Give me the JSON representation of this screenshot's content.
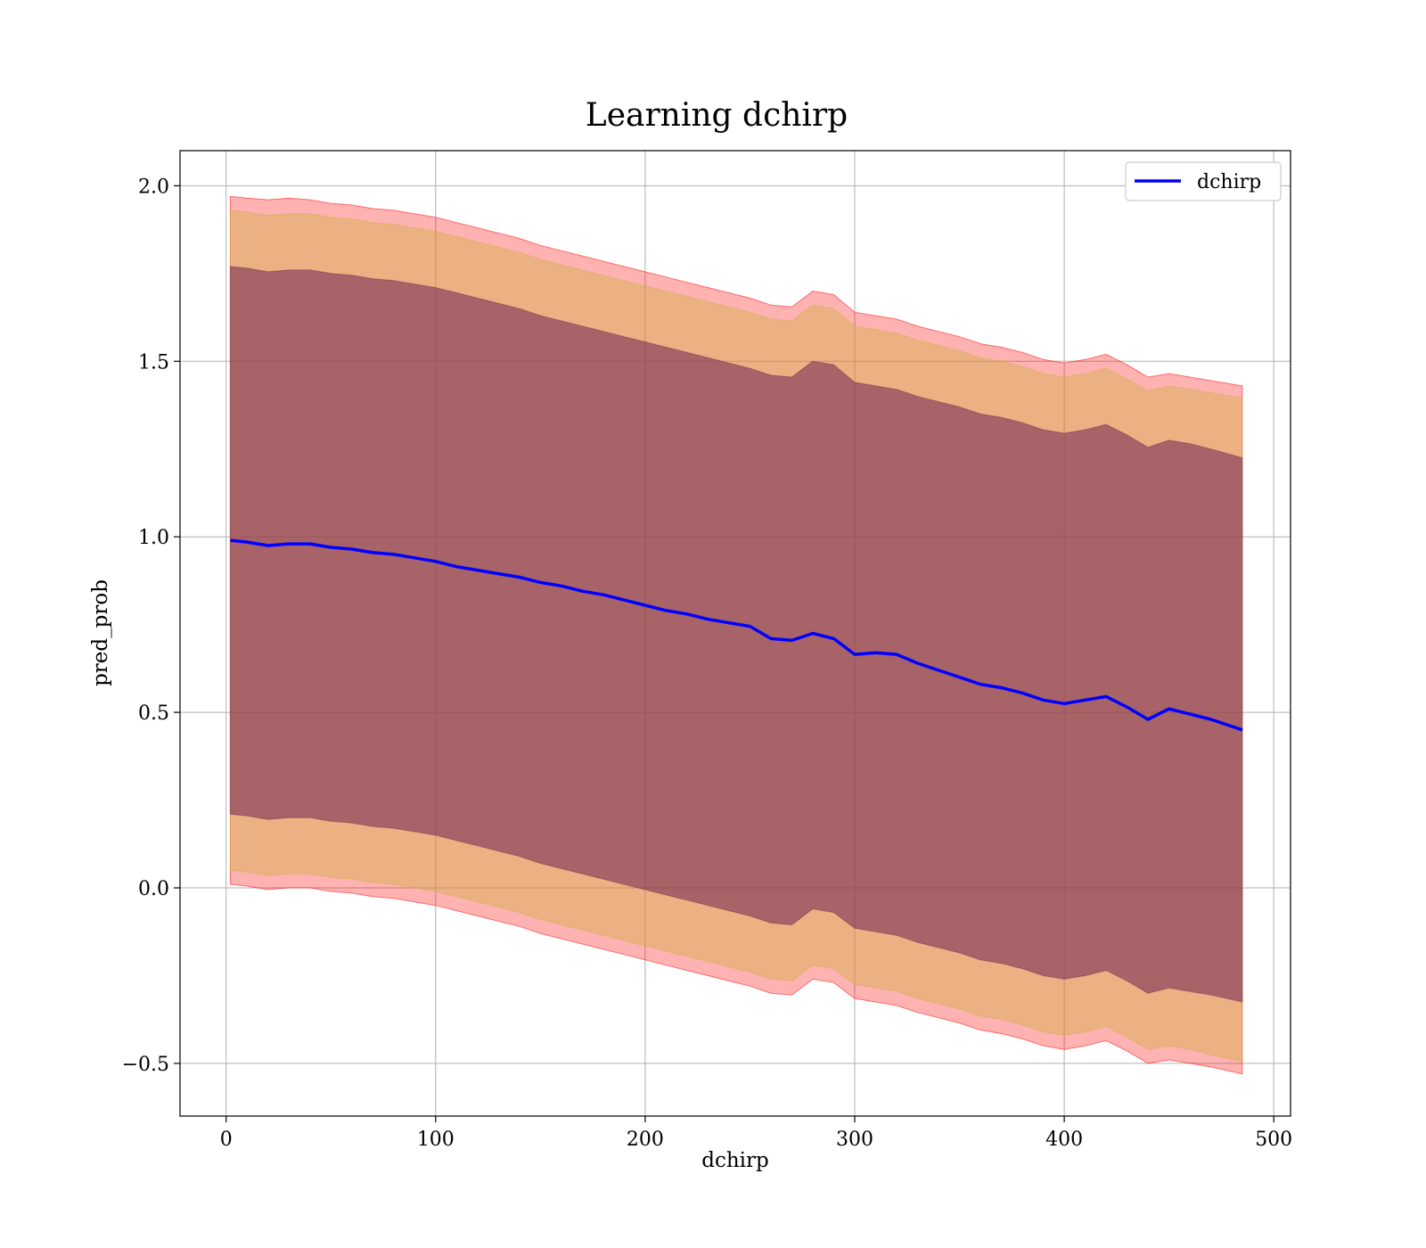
{
  "chart_data": {
    "type": "line",
    "title": "Learning dchirp",
    "xlabel": "dchirp",
    "ylabel": "pred_prob",
    "xlim": [
      -22,
      508
    ],
    "ylim": [
      -0.65,
      2.1
    ],
    "xticks": [
      0,
      100,
      200,
      300,
      400,
      500
    ],
    "xtick_labels": [
      "0",
      "100",
      "200",
      "300",
      "400",
      "500"
    ],
    "yticks": [
      -0.5,
      0.0,
      0.5,
      1.0,
      1.5,
      2.0
    ],
    "ytick_labels": [
      "−0.5",
      "0.0",
      "0.5",
      "1.0",
      "1.5",
      "2.0"
    ],
    "grid": true,
    "legend_position": "top-right",
    "series": [
      {
        "name": "dchirp",
        "color": "#0000ff",
        "x": [
          2,
          10,
          20,
          30,
          40,
          50,
          60,
          70,
          80,
          90,
          100,
          110,
          120,
          130,
          140,
          150,
          160,
          170,
          180,
          190,
          200,
          210,
          220,
          230,
          240,
          250,
          260,
          270,
          280,
          290,
          300,
          310,
          320,
          330,
          340,
          350,
          360,
          370,
          380,
          390,
          400,
          410,
          420,
          430,
          440,
          450,
          460,
          470,
          485
        ],
        "y": [
          0.99,
          0.985,
          0.975,
          0.98,
          0.98,
          0.97,
          0.965,
          0.955,
          0.95,
          0.94,
          0.93,
          0.915,
          0.905,
          0.895,
          0.885,
          0.87,
          0.86,
          0.845,
          0.835,
          0.82,
          0.805,
          0.79,
          0.78,
          0.765,
          0.755,
          0.745,
          0.71,
          0.705,
          0.725,
          0.71,
          0.665,
          0.67,
          0.665,
          0.64,
          0.62,
          0.6,
          0.58,
          0.57,
          0.555,
          0.535,
          0.525,
          0.535,
          0.545,
          0.515,
          0.48,
          0.51,
          0.495,
          0.48,
          0.45
        ]
      }
    ],
    "bands": [
      {
        "label_color": "#ff0000",
        "fill": "#ff0000",
        "opacity": 0.3,
        "upper": [
          1.97,
          1.965,
          1.96,
          1.965,
          1.96,
          1.95,
          1.945,
          1.935,
          1.93,
          1.92,
          1.91,
          1.895,
          1.88,
          1.865,
          1.85,
          1.83,
          1.815,
          1.8,
          1.785,
          1.77,
          1.755,
          1.74,
          1.725,
          1.71,
          1.695,
          1.68,
          1.66,
          1.655,
          1.7,
          1.69,
          1.64,
          1.63,
          1.62,
          1.6,
          1.585,
          1.57,
          1.55,
          1.54,
          1.525,
          1.505,
          1.495,
          1.505,
          1.52,
          1.49,
          1.455,
          1.465,
          1.455,
          1.445,
          1.43
        ],
        "lower": [
          0.01,
          0.005,
          -0.005,
          0.0,
          0.0,
          -0.01,
          -0.015,
          -0.025,
          -0.03,
          -0.04,
          -0.05,
          -0.065,
          -0.08,
          -0.095,
          -0.11,
          -0.13,
          -0.145,
          -0.16,
          -0.175,
          -0.19,
          -0.205,
          -0.22,
          -0.235,
          -0.25,
          -0.265,
          -0.28,
          -0.3,
          -0.305,
          -0.26,
          -0.27,
          -0.315,
          -0.325,
          -0.335,
          -0.355,
          -0.37,
          -0.385,
          -0.405,
          -0.415,
          -0.43,
          -0.45,
          -0.46,
          -0.45,
          -0.435,
          -0.465,
          -0.5,
          -0.49,
          -0.5,
          -0.51,
          -0.53
        ]
      },
      {
        "fill": "#d2b048",
        "opacity": 0.45,
        "upper": [
          1.93,
          1.925,
          1.915,
          1.92,
          1.92,
          1.91,
          1.905,
          1.895,
          1.89,
          1.88,
          1.87,
          1.855,
          1.84,
          1.825,
          1.81,
          1.79,
          1.775,
          1.76,
          1.745,
          1.73,
          1.715,
          1.7,
          1.685,
          1.67,
          1.655,
          1.64,
          1.62,
          1.615,
          1.66,
          1.65,
          1.6,
          1.59,
          1.58,
          1.56,
          1.545,
          1.53,
          1.51,
          1.5,
          1.485,
          1.465,
          1.455,
          1.465,
          1.48,
          1.45,
          1.415,
          1.43,
          1.42,
          1.41,
          1.395
        ],
        "lower": [
          0.05,
          0.045,
          0.035,
          0.04,
          0.04,
          0.03,
          0.025,
          0.015,
          0.01,
          0.0,
          -0.01,
          -0.025,
          -0.04,
          -0.055,
          -0.07,
          -0.09,
          -0.105,
          -0.12,
          -0.135,
          -0.15,
          -0.165,
          -0.18,
          -0.195,
          -0.21,
          -0.225,
          -0.24,
          -0.26,
          -0.265,
          -0.22,
          -0.23,
          -0.275,
          -0.285,
          -0.295,
          -0.315,
          -0.33,
          -0.345,
          -0.365,
          -0.375,
          -0.39,
          -0.41,
          -0.42,
          -0.41,
          -0.395,
          -0.425,
          -0.46,
          -0.45,
          -0.46,
          -0.475,
          -0.495
        ]
      },
      {
        "fill": "#7a2f56",
        "opacity": 0.6,
        "upper": [
          1.77,
          1.765,
          1.755,
          1.76,
          1.76,
          1.75,
          1.745,
          1.735,
          1.73,
          1.72,
          1.71,
          1.695,
          1.68,
          1.665,
          1.65,
          1.63,
          1.615,
          1.6,
          1.585,
          1.57,
          1.555,
          1.54,
          1.525,
          1.51,
          1.495,
          1.48,
          1.46,
          1.455,
          1.5,
          1.49,
          1.44,
          1.43,
          1.42,
          1.4,
          1.385,
          1.37,
          1.35,
          1.34,
          1.325,
          1.305,
          1.295,
          1.305,
          1.32,
          1.29,
          1.255,
          1.275,
          1.265,
          1.25,
          1.225
        ],
        "lower": [
          0.21,
          0.205,
          0.195,
          0.2,
          0.2,
          0.19,
          0.185,
          0.175,
          0.17,
          0.16,
          0.15,
          0.135,
          0.12,
          0.105,
          0.09,
          0.07,
          0.055,
          0.04,
          0.025,
          0.01,
          -0.005,
          -0.02,
          -0.035,
          -0.05,
          -0.065,
          -0.08,
          -0.1,
          -0.105,
          -0.06,
          -0.07,
          -0.115,
          -0.125,
          -0.135,
          -0.155,
          -0.17,
          -0.185,
          -0.205,
          -0.215,
          -0.23,
          -0.25,
          -0.26,
          -0.25,
          -0.235,
          -0.265,
          -0.3,
          -0.285,
          -0.295,
          -0.305,
          -0.325
        ]
      }
    ]
  }
}
